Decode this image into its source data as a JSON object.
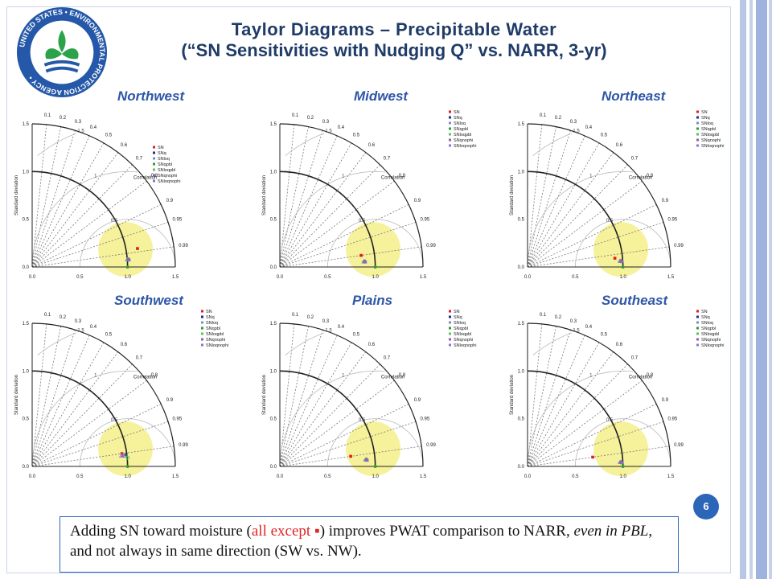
{
  "slide": {
    "title_line1": "Taylor Diagrams – Precipitable Water",
    "title_line2": "(“SN Sensitivities with Nudging Q” vs. NARR, 3-yr)",
    "page_number": "6",
    "logo_text": "UNITED STATES ENVIRONMENTAL PROTECTION AGENCY",
    "caption": {
      "part1": "Adding SN toward moisture (",
      "red": "all except ▪",
      "part2": ") improves PWAT comparison to NARR, ",
      "italic": "even in PBL",
      "part3": ", and not always in same direction (SW vs. NW)."
    }
  },
  "colors": {
    "title": "#1f3b67",
    "region_label": "#2e56a6",
    "highlight": "#f5ef8a",
    "accent_blue": "#2b66b8",
    "caption_red": "#e02424"
  },
  "chart_data": [
    {
      "type": "scatter",
      "title": "Northwest",
      "ylabel": "Standard deviation",
      "xlim": [
        0,
        1.5
      ],
      "ylim": [
        0,
        1.5
      ],
      "x_ticks": [
        "0.0",
        "0.5",
        "1.0",
        "1.5"
      ],
      "y_ticks": [
        "0.0",
        "0.5",
        "1.0",
        "1.5"
      ],
      "correlation_label": "Correlation",
      "correlation_ticks": [
        "0.1",
        "0.2",
        "0.3",
        "0.4",
        "0.5",
        "0.6",
        "0.7",
        "0.8",
        "0.9",
        "0.95",
        "0.99"
      ],
      "rms_labels": [
        "0.5",
        "1",
        "1.5"
      ],
      "legend_position": "right-middle",
      "series": [
        {
          "name": "SN",
          "color": "#e41a1c",
          "marker": "square",
          "sd": 1.12,
          "corr": 0.985
        },
        {
          "name": "SNq",
          "color": "#1f2f8f",
          "marker": "dot",
          "sd": 1.01,
          "corr": 0.997
        },
        {
          "name": "SNloq",
          "color": "#7b8fc2",
          "marker": "circle",
          "sd": 1.0,
          "corr": 0.997
        },
        {
          "name": "SNqpbl",
          "color": "#2ca02c",
          "marker": "plus",
          "sd": 1.0,
          "corr": 0.997
        },
        {
          "name": "SNloqpbl",
          "color": "#60c060",
          "marker": "diamond",
          "sd": 1.0,
          "corr": 0.997
        },
        {
          "name": "SNqnophi",
          "color": "#9b59b6",
          "marker": "triangle",
          "sd": 1.0,
          "corr": 0.997
        },
        {
          "name": "SNloqnophi",
          "color": "#7b7bd4",
          "marker": "triangle-open",
          "sd": 1.0,
          "corr": 0.997
        }
      ]
    },
    {
      "type": "scatter",
      "title": "Midwest",
      "ylabel": "Standard deviation",
      "xlim": [
        0,
        1.5
      ],
      "ylim": [
        0,
        1.5
      ],
      "x_ticks": [
        "0.0",
        "0.5",
        "1.0",
        "1.5"
      ],
      "y_ticks": [
        "0.0",
        "0.5",
        "1.0",
        "1.5"
      ],
      "correlation_label": "Correlation",
      "correlation_ticks": [
        "0.1",
        "0.2",
        "0.3",
        "0.4",
        "0.5",
        "0.6",
        "0.7",
        "0.8",
        "0.9",
        "0.95",
        "0.99"
      ],
      "rms_labels": [
        "0.5",
        "1",
        "1.5"
      ],
      "legend_position": "top-right",
      "series": [
        {
          "name": "SN",
          "color": "#e41a1c",
          "marker": "square",
          "sd": 0.86,
          "corr": 0.99
        },
        {
          "name": "SNq",
          "color": "#1f2f8f",
          "marker": "dot",
          "sd": 0.88,
          "corr": 0.998
        },
        {
          "name": "SNloq",
          "color": "#7b8fc2",
          "marker": "circle",
          "sd": 0.88,
          "corr": 0.998
        },
        {
          "name": "SNqpbl",
          "color": "#2ca02c",
          "marker": "plus",
          "sd": 0.88,
          "corr": 0.998
        },
        {
          "name": "SNloqpbl",
          "color": "#60c060",
          "marker": "diamond",
          "sd": 0.88,
          "corr": 0.998
        },
        {
          "name": "SNqnophi",
          "color": "#9b59b6",
          "marker": "triangle",
          "sd": 0.88,
          "corr": 0.998
        },
        {
          "name": "SNloqnophi",
          "color": "#7b7bd4",
          "marker": "triangle-open",
          "sd": 0.88,
          "corr": 0.998
        }
      ]
    },
    {
      "type": "scatter",
      "title": "Northeast",
      "ylabel": "Standard deviation",
      "xlim": [
        0,
        1.5
      ],
      "ylim": [
        0,
        1.5
      ],
      "x_ticks": [
        "0.0",
        "0.5",
        "1.0",
        "1.5"
      ],
      "y_ticks": [
        "0.0",
        "0.5",
        "1.0",
        "1.5"
      ],
      "correlation_label": "Correlation",
      "correlation_ticks": [
        "0.1",
        "0.2",
        "0.3",
        "0.4",
        "0.5",
        "0.6",
        "0.7",
        "0.8",
        "0.9",
        "0.95",
        "0.99"
      ],
      "rms_labels": [
        "0.5",
        "1",
        "1.5"
      ],
      "legend_position": "top-right",
      "series": [
        {
          "name": "SN",
          "color": "#e41a1c",
          "marker": "square",
          "sd": 0.92,
          "corr": 0.995
        },
        {
          "name": "SNq",
          "color": "#1f2f8f",
          "marker": "dot",
          "sd": 0.97,
          "corr": 0.998
        },
        {
          "name": "SNloq",
          "color": "#7b8fc2",
          "marker": "circle",
          "sd": 0.97,
          "corr": 0.998
        },
        {
          "name": "SNqpbl",
          "color": "#2ca02c",
          "marker": "plus",
          "sd": 0.97,
          "corr": 0.998
        },
        {
          "name": "SNloqpbl",
          "color": "#60c060",
          "marker": "diamond",
          "sd": 0.97,
          "corr": 0.998
        },
        {
          "name": "SNqnophi",
          "color": "#9b59b6",
          "marker": "triangle",
          "sd": 0.97,
          "corr": 0.998
        },
        {
          "name": "SNloqnophi",
          "color": "#7b7bd4",
          "marker": "triangle-open",
          "sd": 0.97,
          "corr": 0.998
        }
      ]
    },
    {
      "type": "scatter",
      "title": "Southwest",
      "ylabel": "Standard deviation",
      "xlim": [
        0,
        1.5
      ],
      "ylim": [
        0,
        1.5
      ],
      "x_ticks": [
        "0.0",
        "0.5",
        "1.0",
        "1.5"
      ],
      "y_ticks": [
        "0.0",
        "0.5",
        "1.0",
        "1.5"
      ],
      "correlation_label": "Correlation",
      "correlation_ticks": [
        "0.1",
        "0.2",
        "0.3",
        "0.4",
        "0.5",
        "0.6",
        "0.7",
        "0.8",
        "0.9",
        "0.95",
        "0.99"
      ],
      "rms_labels": [
        "0.5",
        "1",
        "1.5"
      ],
      "legend_position": "top-right",
      "series": [
        {
          "name": "SN",
          "color": "#e41a1c",
          "marker": "square",
          "sd": 0.95,
          "corr": 0.99
        },
        {
          "name": "SNq",
          "color": "#1f2f8f",
          "marker": "dot",
          "sd": 0.98,
          "corr": 0.992
        },
        {
          "name": "SNloq",
          "color": "#7b8fc2",
          "marker": "circle",
          "sd": 0.96,
          "corr": 0.993
        },
        {
          "name": "SNqpbl",
          "color": "#2ca02c",
          "marker": "plus",
          "sd": 1.0,
          "corr": 0.995
        },
        {
          "name": "SNloqpbl",
          "color": "#60c060",
          "marker": "diamond",
          "sd": 1.0,
          "corr": 0.996
        },
        {
          "name": "SNqnophi",
          "color": "#9b59b6",
          "marker": "triangle",
          "sd": 0.94,
          "corr": 0.993
        },
        {
          "name": "SNloqnophi",
          "color": "#7b7bd4",
          "marker": "triangle-open",
          "sd": 0.94,
          "corr": 0.993
        }
      ]
    },
    {
      "type": "scatter",
      "title": "Plains",
      "ylabel": "Standard deviation",
      "xlim": [
        0,
        1.5
      ],
      "ylim": [
        0,
        1.5
      ],
      "x_ticks": [
        "0.0",
        "0.5",
        "1.0",
        "1.5"
      ],
      "y_ticks": [
        "0.0",
        "0.5",
        "1.0",
        "1.5"
      ],
      "correlation_label": "Correlation",
      "correlation_ticks": [
        "0.1",
        "0.2",
        "0.3",
        "0.4",
        "0.5",
        "0.6",
        "0.7",
        "0.8",
        "0.9",
        "0.95",
        "0.99"
      ],
      "rms_labels": [
        "0.5",
        "1",
        "1.5"
      ],
      "legend_position": "top-right",
      "series": [
        {
          "name": "SN",
          "color": "#e41a1c",
          "marker": "square",
          "sd": 0.75,
          "corr": 0.99
        },
        {
          "name": "SNq",
          "color": "#1f2f8f",
          "marker": "dot",
          "sd": 0.9,
          "corr": 0.997
        },
        {
          "name": "SNloq",
          "color": "#7b8fc2",
          "marker": "circle",
          "sd": 0.9,
          "corr": 0.997
        },
        {
          "name": "SNqpbl",
          "color": "#2ca02c",
          "marker": "plus",
          "sd": 0.9,
          "corr": 0.997
        },
        {
          "name": "SNloqpbl",
          "color": "#60c060",
          "marker": "diamond",
          "sd": 0.9,
          "corr": 0.997
        },
        {
          "name": "SNqnophi",
          "color": "#9b59b6",
          "marker": "triangle",
          "sd": 0.9,
          "corr": 0.997
        },
        {
          "name": "SNloqnophi",
          "color": "#7b7bd4",
          "marker": "triangle-open",
          "sd": 0.9,
          "corr": 0.997
        }
      ]
    },
    {
      "type": "scatter",
      "title": "Southeast",
      "ylabel": "Standard deviation",
      "xlim": [
        0,
        1.5
      ],
      "ylim": [
        0,
        1.5
      ],
      "x_ticks": [
        "0.0",
        "0.5",
        "1.0",
        "1.5"
      ],
      "y_ticks": [
        "0.0",
        "0.5",
        "1.0",
        "1.5"
      ],
      "correlation_label": "Correlation",
      "correlation_ticks": [
        "0.1",
        "0.2",
        "0.3",
        "0.4",
        "0.5",
        "0.6",
        "0.7",
        "0.8",
        "0.9",
        "0.95",
        "0.99"
      ],
      "rms_labels": [
        "0.5",
        "1",
        "1.5"
      ],
      "legend_position": "top-right",
      "series": [
        {
          "name": "SN",
          "color": "#e41a1c",
          "marker": "square",
          "sd": 0.69,
          "corr": 0.99
        },
        {
          "name": "SNq",
          "color": "#1f2f8f",
          "marker": "dot",
          "sd": 0.97,
          "corr": 0.999
        },
        {
          "name": "SNloq",
          "color": "#7b8fc2",
          "marker": "circle",
          "sd": 0.97,
          "corr": 0.999
        },
        {
          "name": "SNqpbl",
          "color": "#2ca02c",
          "marker": "plus",
          "sd": 0.97,
          "corr": 0.999
        },
        {
          "name": "SNloqpbl",
          "color": "#60c060",
          "marker": "diamond",
          "sd": 0.97,
          "corr": 0.999
        },
        {
          "name": "SNqnophi",
          "color": "#9b59b6",
          "marker": "triangle",
          "sd": 0.97,
          "corr": 0.999
        },
        {
          "name": "SNloqnophi",
          "color": "#7b7bd4",
          "marker": "triangle-open",
          "sd": 0.97,
          "corr": 0.999
        }
      ]
    }
  ]
}
